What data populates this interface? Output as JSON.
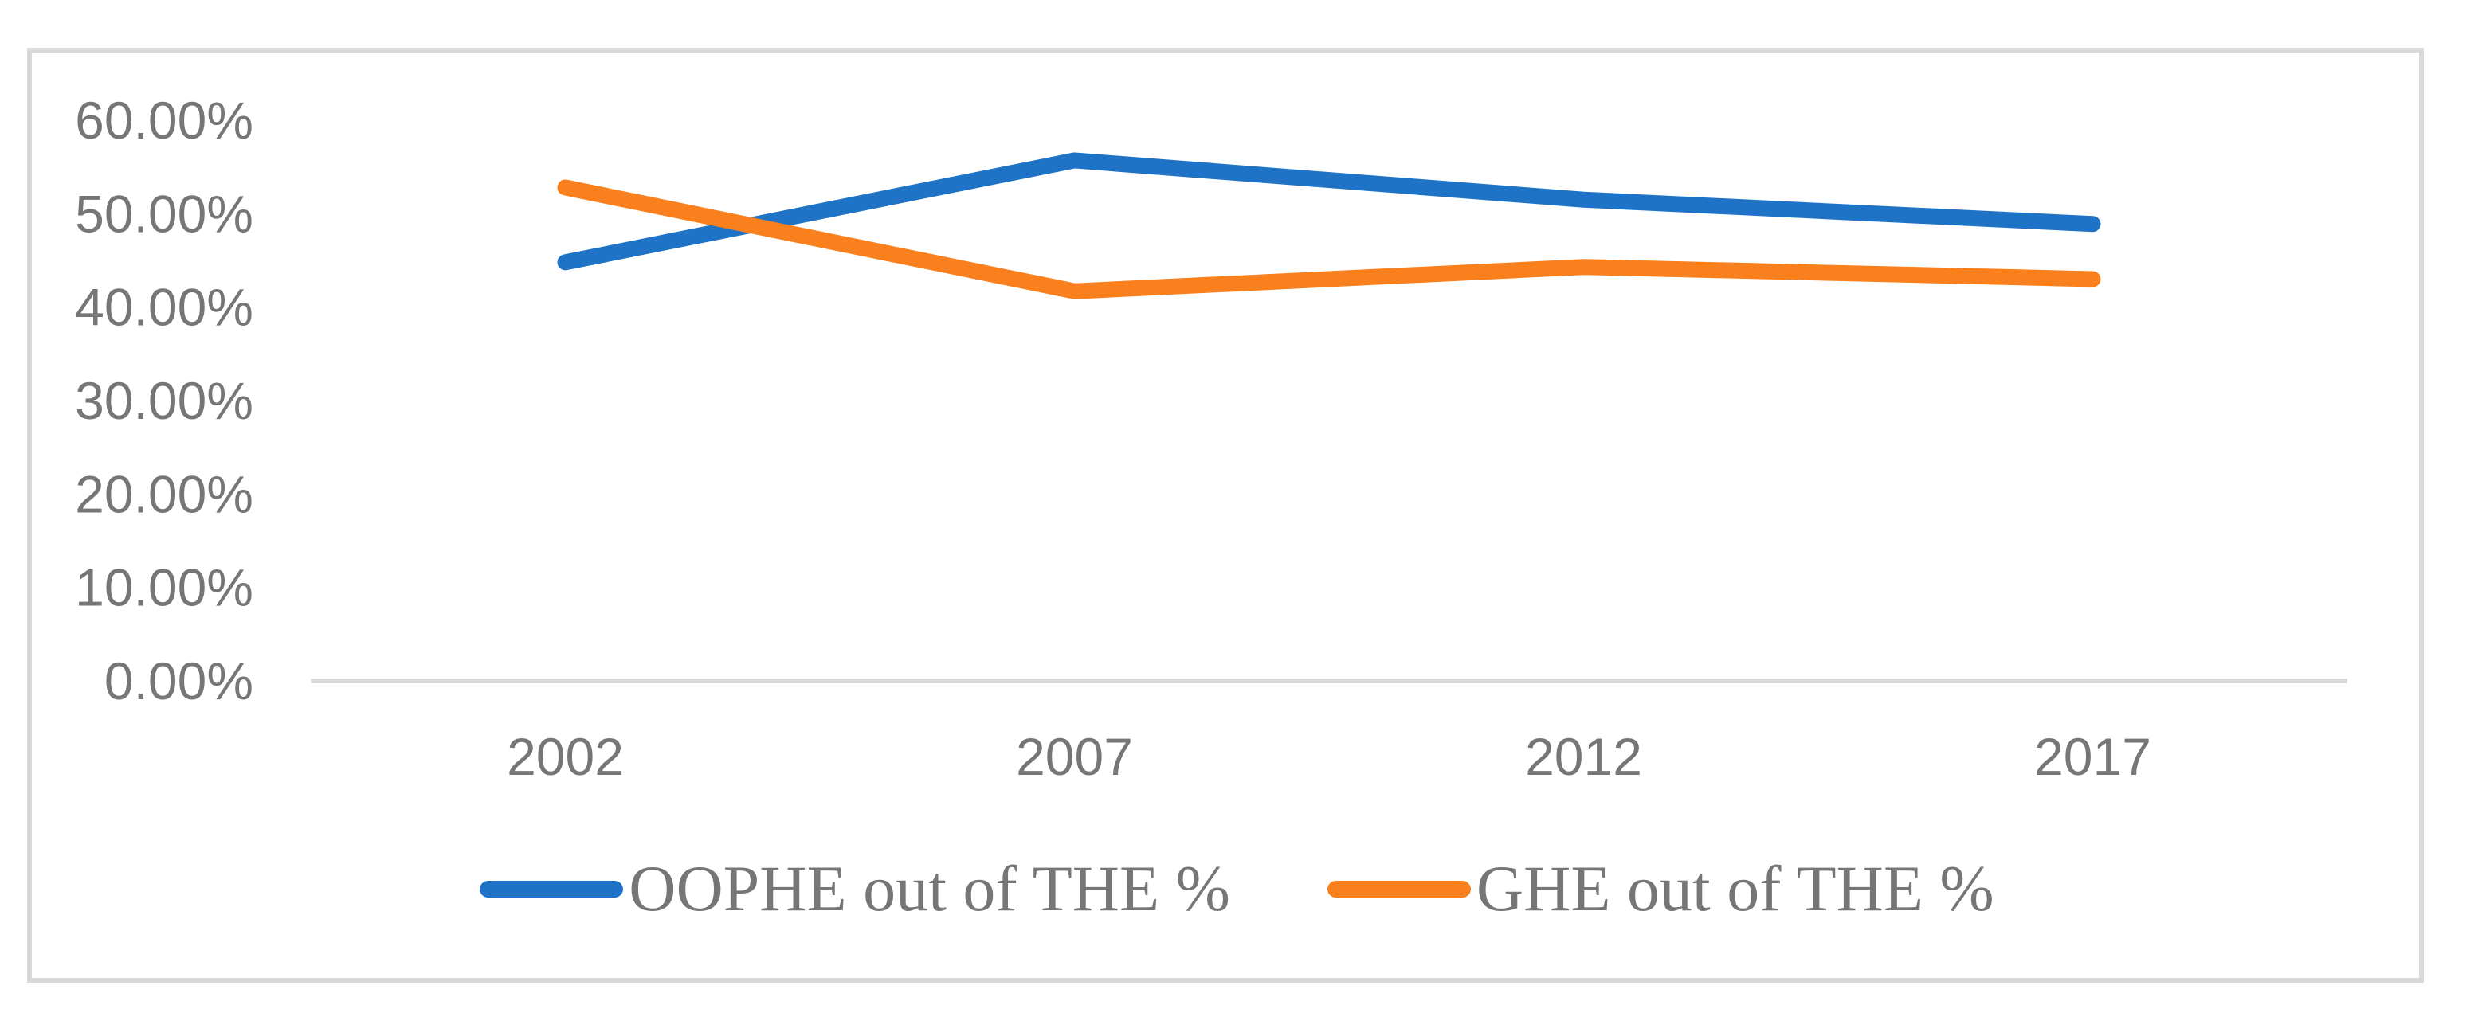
{
  "chart_data": {
    "type": "line",
    "title": "",
    "xlabel": "",
    "ylabel": "",
    "categories": [
      "2002",
      "2007",
      "2012",
      "2017"
    ],
    "series": [
      {
        "name": "OOPHE out of THE %",
        "color": "#1E73C6",
        "values": [
          44.8,
          55.7,
          51.5,
          48.9
        ]
      },
      {
        "name": "GHE out of THE %",
        "color": "#F9801D",
        "values": [
          52.8,
          41.7,
          44.3,
          43.0
        ]
      }
    ],
    "ylim": [
      0,
      60
    ],
    "y_ticks": [
      {
        "value": 0,
        "label": "0.00%"
      },
      {
        "value": 10,
        "label": "10.00%"
      },
      {
        "value": 20,
        "label": "20.00%"
      },
      {
        "value": 30,
        "label": "30.00%"
      },
      {
        "value": 40,
        "label": "40.00%"
      },
      {
        "value": 50,
        "label": "50.00%"
      },
      {
        "value": 60,
        "label": "60.00%"
      }
    ],
    "grid": false,
    "legend_position": "bottom",
    "axis_line_color": "#D9D9D9",
    "frame_color": "#D9D9D9",
    "tick_label_color": "#767676",
    "line_width": 20
  }
}
